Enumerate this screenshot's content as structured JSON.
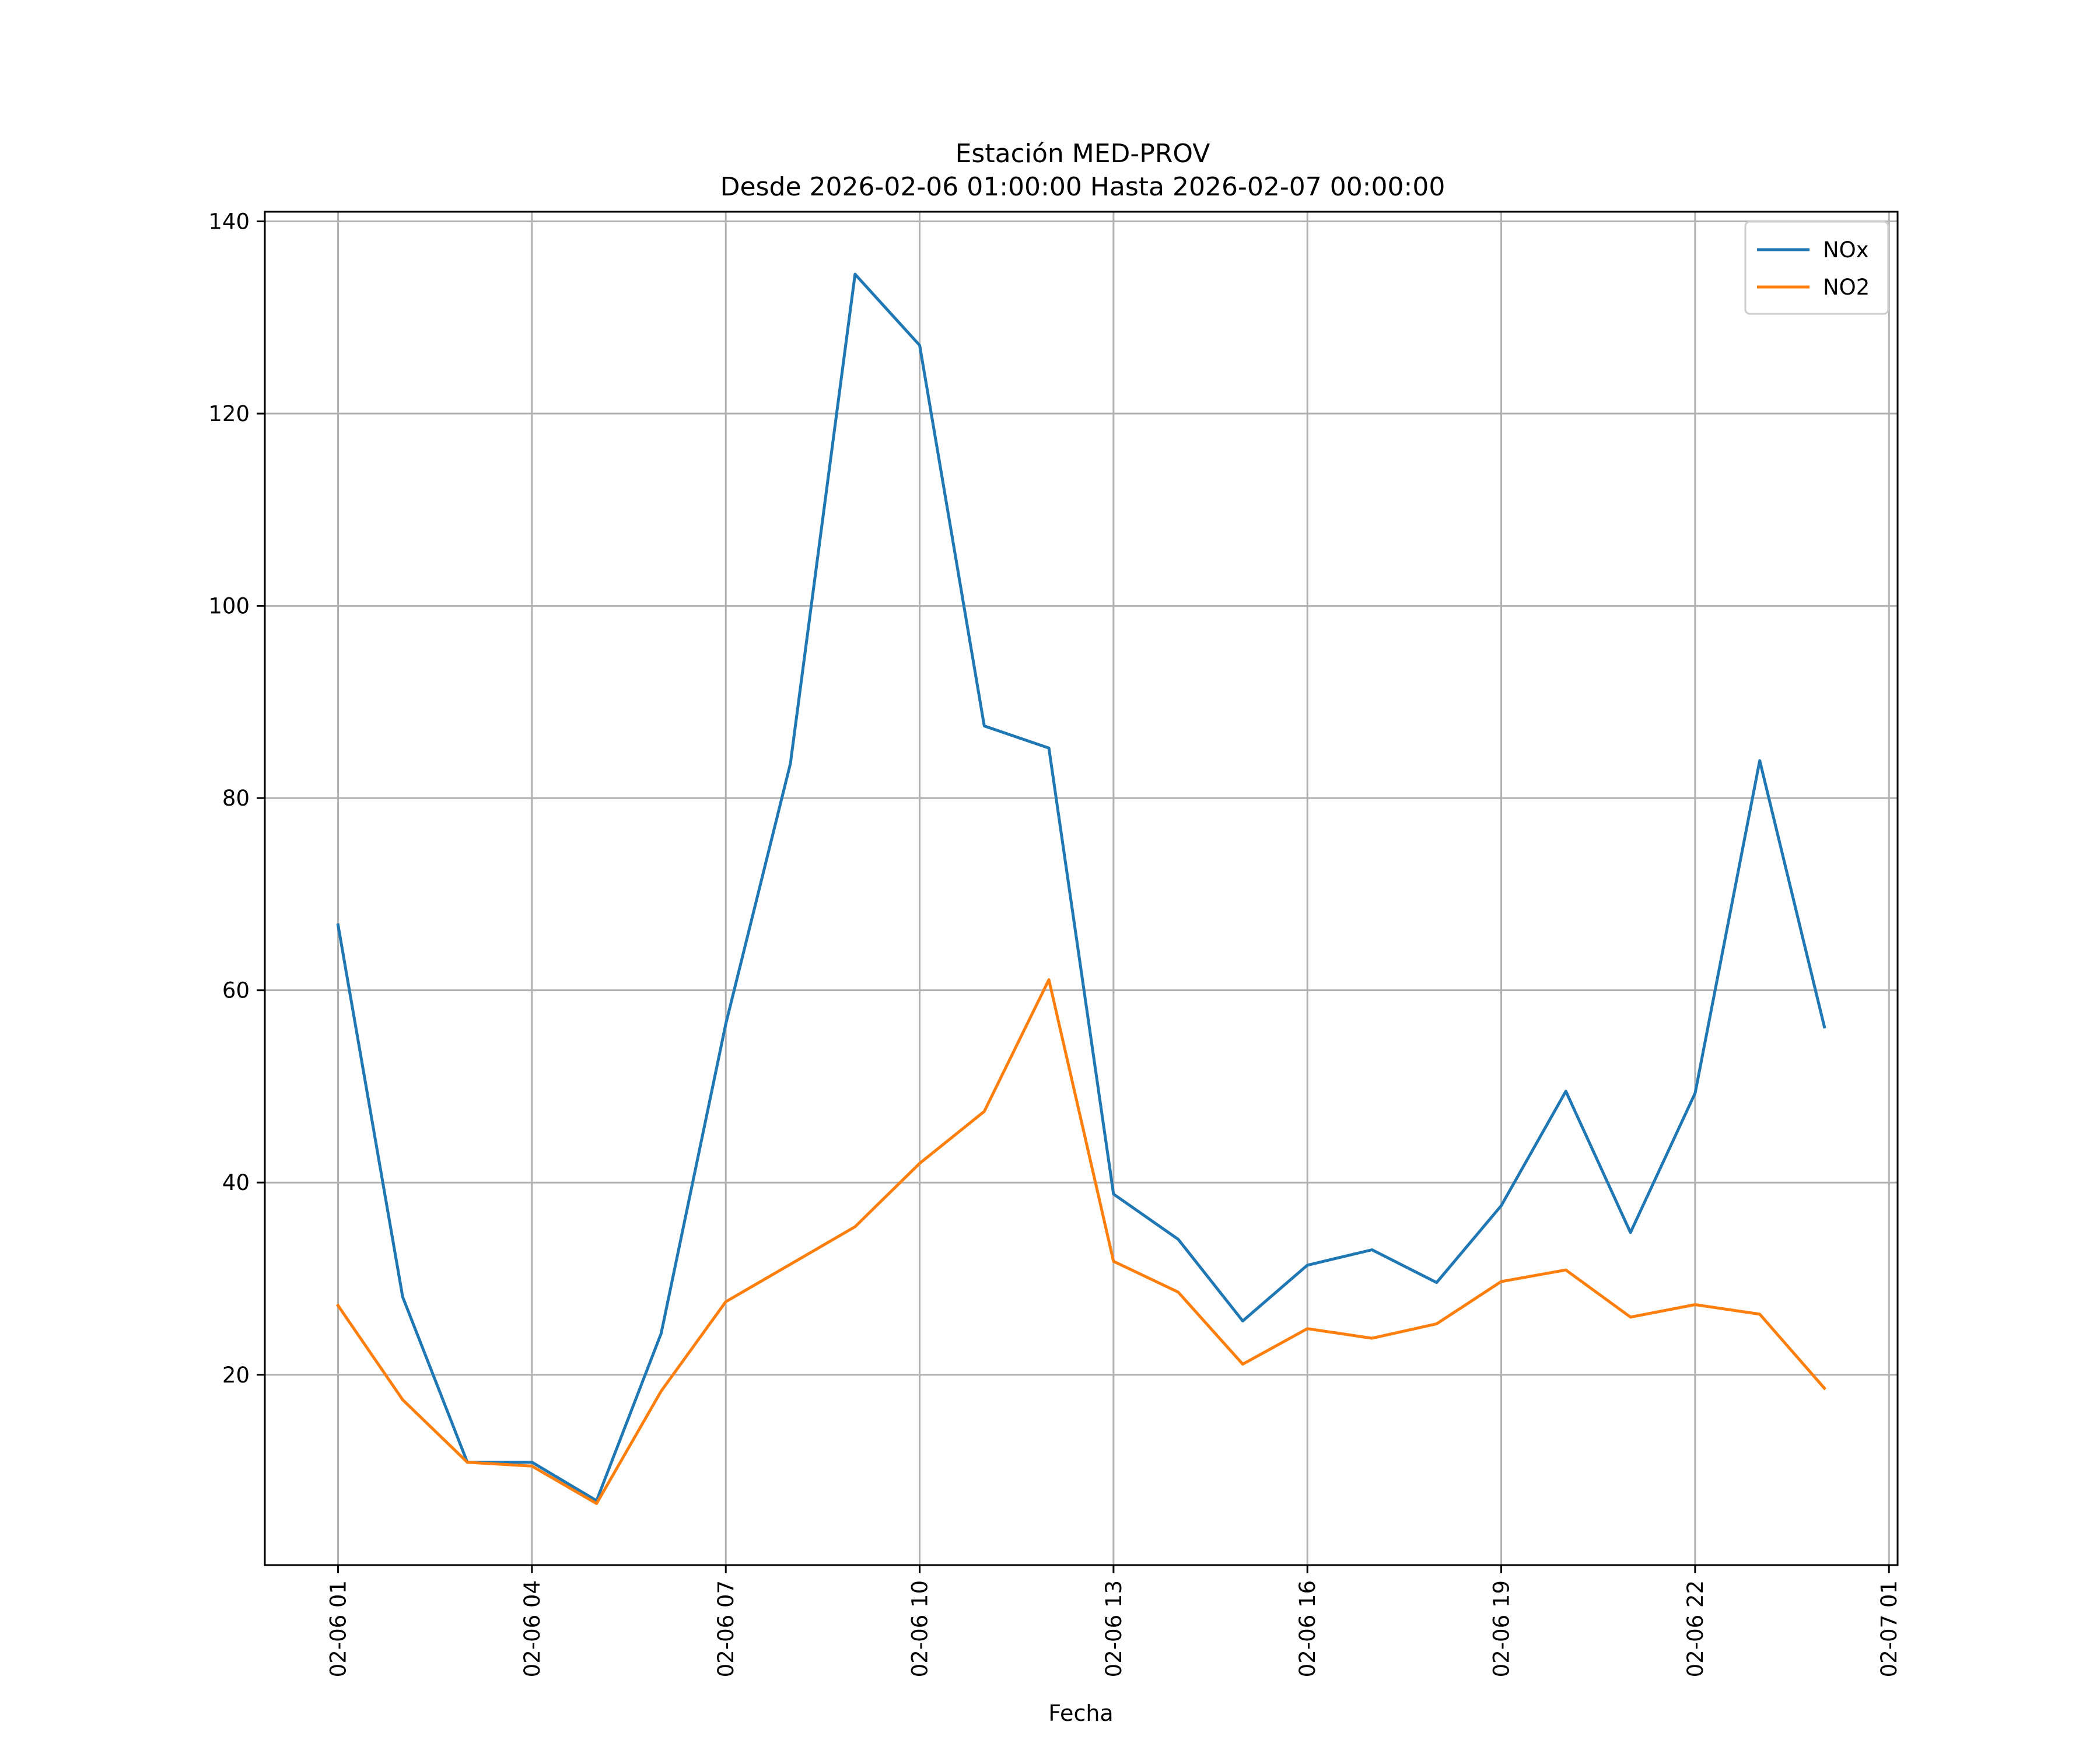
{
  "chart_data": {
    "type": "line",
    "title": "Estación MED-PROV",
    "subtitle": "Desde 2026-02-06 01:00:00 Hasta 2026-02-07 00:00:00",
    "xlabel": "Fecha",
    "ylabel": "",
    "x": [
      "2026-02-06 01:00",
      "2026-02-06 02:00",
      "2026-02-06 03:00",
      "2026-02-06 04:00",
      "2026-02-06 05:00",
      "2026-02-06 06:00",
      "2026-02-06 07:00",
      "2026-02-06 08:00",
      "2026-02-06 09:00",
      "2026-02-06 10:00",
      "2026-02-06 11:00",
      "2026-02-06 12:00",
      "2026-02-06 13:00",
      "2026-02-06 14:00",
      "2026-02-06 15:00",
      "2026-02-06 16:00",
      "2026-02-06 17:00",
      "2026-02-06 18:00",
      "2026-02-06 19:00",
      "2026-02-06 20:00",
      "2026-02-06 21:00",
      "2026-02-06 22:00",
      "2026-02-06 23:00",
      "2026-02-07 00:00"
    ],
    "series": [
      {
        "name": "NOx",
        "color": "#1f77b4",
        "values": [
          66.8,
          28.1,
          10.9,
          10.9,
          6.9,
          24.3,
          56.5,
          83.6,
          134.5,
          127.1,
          87.5,
          85.2,
          38.8,
          34.1,
          25.6,
          31.4,
          33.0,
          29.6,
          37.6,
          49.5,
          34.8,
          49.3,
          83.9,
          56.2
        ]
      },
      {
        "name": "NO2",
        "color": "#ff7f0e",
        "values": [
          27.2,
          17.4,
          10.9,
          10.5,
          6.6,
          18.3,
          27.6,
          31.5,
          35.4,
          42.0,
          47.4,
          61.1,
          31.8,
          28.6,
          21.1,
          24.8,
          23.8,
          25.3,
          29.7,
          30.9,
          26.0,
          27.3,
          26.3,
          18.6
        ]
      }
    ],
    "x_tick_labels": [
      "02-06 01",
      "02-06 04",
      "02-06 07",
      "02-06 10",
      "02-06 13",
      "02-06 16",
      "02-06 19",
      "02-06 22",
      "02-07 01"
    ],
    "x_tick_dates": [
      "2026-02-06 01:00",
      "2026-02-06 04:00",
      "2026-02-06 07:00",
      "2026-02-06 10:00",
      "2026-02-06 13:00",
      "2026-02-06 16:00",
      "2026-02-06 19:00",
      "2026-02-06 22:00",
      "2026-02-07 01:00"
    ],
    "xlim": [
      "2026-02-05 23:52",
      "2026-02-07 01:08"
    ],
    "y_ticks": [
      20,
      40,
      60,
      80,
      100,
      120,
      140
    ],
    "ylim": [
      0.2,
      141
    ],
    "grid": true,
    "legend_position": "top-right"
  }
}
